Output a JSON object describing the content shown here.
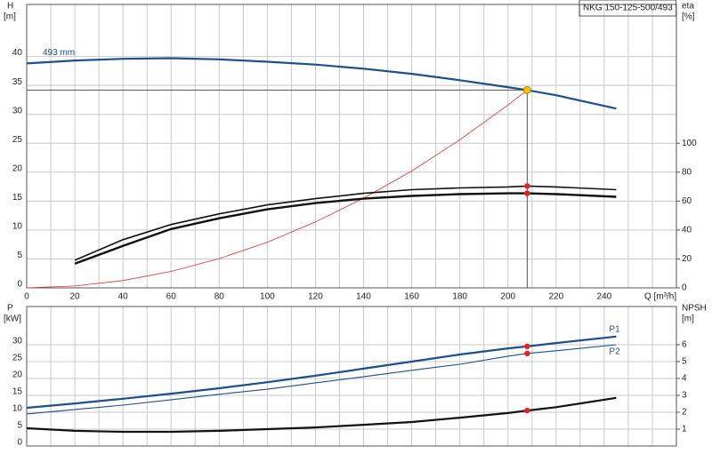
{
  "chart_data": [
    {
      "type": "line",
      "title": "NKG 150-125-500/493",
      "y_label": "H",
      "y_unit": "[m]",
      "y2_label": "eta",
      "y2_unit": "[%]",
      "x_label": "Q [m³/h]",
      "xlim": [
        0,
        270
      ],
      "xticks": [
        0,
        20,
        40,
        60,
        80,
        100,
        120,
        140,
        160,
        180,
        200,
        220,
        240
      ],
      "xgrid_minor": [
        10,
        30,
        50,
        70,
        90,
        110,
        130,
        150,
        170,
        190,
        210,
        230,
        250,
        260
      ],
      "xtick_labels": true,
      "ylim": [
        0,
        49
      ],
      "yticks": [
        0,
        5,
        10,
        15,
        20,
        25,
        30,
        35,
        40
      ],
      "y2lim": [
        0,
        196
      ],
      "y2ticks": [
        0,
        20,
        40,
        60,
        80,
        100
      ],
      "grid": true,
      "highlight_x": 208,
      "operating_point": {
        "x": 208,
        "y": 34.2,
        "color": "#f5c400"
      },
      "series": [
        {
          "label": "493 mm",
          "color": "#1f4e8c",
          "width": 2.2,
          "x": [
            0,
            20,
            40,
            60,
            80,
            100,
            120,
            140,
            160,
            180,
            200,
            208,
            220,
            245
          ],
          "values": [
            38.8,
            39.3,
            39.6,
            39.7,
            39.5,
            39.1,
            38.6,
            37.9,
            37.0,
            35.9,
            34.7,
            34.2,
            33.3,
            31.0
          ]
        },
        {
          "color": "#e03030",
          "width": 0.8,
          "x": [
            0,
            20,
            40,
            60,
            80,
            100,
            120,
            140,
            160,
            180,
            200,
            208
          ],
          "values": [
            0,
            0.32,
            1.26,
            2.84,
            5.06,
            7.9,
            11.4,
            15.5,
            20.2,
            25.6,
            31.6,
            34.2
          ]
        },
        {
          "axis": "y2",
          "color": "#111",
          "width": 1.6,
          "x": [
            20,
            40,
            60,
            80,
            100,
            120,
            140,
            160,
            180,
            200,
            208,
            220,
            245
          ],
          "values": [
            19.1,
            33.3,
            43.8,
            51.2,
            57.4,
            61.7,
            65.4,
            67.9,
            69.1,
            69.8,
            70.4,
            69.8,
            67.9
          ]
        },
        {
          "axis": "y2",
          "color": "#111",
          "width": 2.4,
          "x": [
            20,
            40,
            60,
            80,
            100,
            120,
            140,
            160,
            180,
            200,
            208,
            220,
            245
          ],
          "values": [
            16.7,
            29.0,
            40.7,
            48.1,
            54.3,
            58.6,
            61.7,
            63.6,
            64.8,
            65.4,
            65.4,
            64.8,
            63.0
          ]
        }
      ]
    },
    {
      "type": "line",
      "y_label": "P",
      "y_unit": "[kW]",
      "y2_label": "NPSH",
      "y2_unit": "[m]",
      "xlim": [
        0,
        270
      ],
      "xticks": [
        0,
        20,
        40,
        60,
        80,
        100,
        120,
        140,
        160,
        180,
        200,
        220,
        240
      ],
      "xgrid_minor": [
        10,
        30,
        50,
        70,
        90,
        110,
        130,
        150,
        170,
        190,
        210,
        230,
        250,
        260
      ],
      "xtick_labels": false,
      "ylim": [
        0,
        41.3
      ],
      "yticks": [
        0,
        5,
        10,
        15,
        20,
        25,
        30
      ],
      "y2lim": [
        0,
        8.26
      ],
      "y2ticks": [
        1,
        2,
        3,
        4,
        5,
        6
      ],
      "grid": true,
      "highlight_x": 208,
      "series": [
        {
          "label": "P1",
          "color": "#1f4e8c",
          "width": 2.2,
          "x": [
            0,
            20,
            40,
            60,
            80,
            100,
            120,
            140,
            160,
            180,
            200,
            208,
            220,
            245
          ],
          "values": [
            11.3,
            12.6,
            14.0,
            15.5,
            17.1,
            18.9,
            20.8,
            22.9,
            25.0,
            27.1,
            28.9,
            29.5,
            30.5,
            32.4
          ]
        },
        {
          "label": "P2",
          "color": "#1f4e8c",
          "width": 1.1,
          "x": [
            0,
            20,
            40,
            60,
            80,
            100,
            120,
            140,
            160,
            180,
            200,
            208,
            220,
            245
          ],
          "values": [
            9.5,
            10.8,
            12.1,
            13.7,
            15.3,
            16.8,
            18.7,
            20.5,
            22.4,
            24.2,
            26.6,
            27.4,
            28.2,
            30.0
          ]
        },
        {
          "axis": "y2",
          "color": "#111",
          "width": 2.2,
          "x": [
            0,
            20,
            40,
            60,
            80,
            100,
            120,
            140,
            160,
            180,
            200,
            208,
            220,
            245
          ],
          "values": [
            1.05,
            0.9,
            0.84,
            0.84,
            0.9,
            1.0,
            1.1,
            1.26,
            1.42,
            1.68,
            1.95,
            2.1,
            2.3,
            2.85
          ]
        }
      ]
    }
  ]
}
